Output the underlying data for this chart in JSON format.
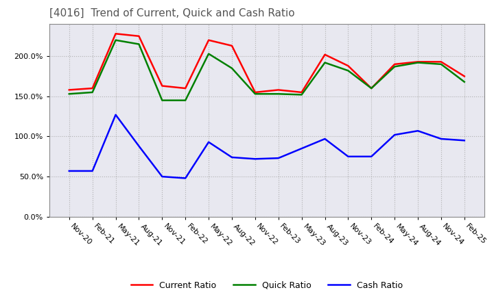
{
  "title": "[4016]  Trend of Current, Quick and Cash Ratio",
  "title_color": "#555555",
  "background_color": "#ffffff",
  "plot_background_color": "#e8e8f0",
  "grid_color": "#aaaaaa",
  "ylim_max": 2.4,
  "ytick_interval": 0.5,
  "dates": [
    "Nov-20",
    "Feb-21",
    "May-21",
    "Aug-21",
    "Nov-21",
    "Feb-22",
    "May-22",
    "Aug-22",
    "Nov-22",
    "Feb-23",
    "May-23",
    "Aug-23",
    "Nov-23",
    "Feb-24",
    "May-24",
    "Aug-24",
    "Nov-24",
    "Feb-25"
  ],
  "current_ratio": [
    1.58,
    1.6,
    2.28,
    2.25,
    1.63,
    1.6,
    2.2,
    2.13,
    1.55,
    1.58,
    1.55,
    2.02,
    1.88,
    1.6,
    1.9,
    1.93,
    1.93,
    1.75
  ],
  "quick_ratio": [
    1.53,
    1.55,
    2.2,
    2.15,
    1.45,
    1.45,
    2.03,
    1.85,
    1.53,
    1.53,
    1.52,
    1.92,
    1.82,
    1.6,
    1.87,
    1.92,
    1.9,
    1.68
  ],
  "cash_ratio": [
    0.57,
    0.57,
    1.27,
    0.88,
    0.5,
    0.48,
    0.93,
    0.74,
    0.72,
    0.73,
    0.85,
    0.97,
    0.75,
    0.75,
    1.02,
    1.07,
    0.97,
    0.95
  ],
  "current_color": "#ff0000",
  "quick_color": "#008000",
  "cash_color": "#0000ff",
  "line_width": 1.8
}
